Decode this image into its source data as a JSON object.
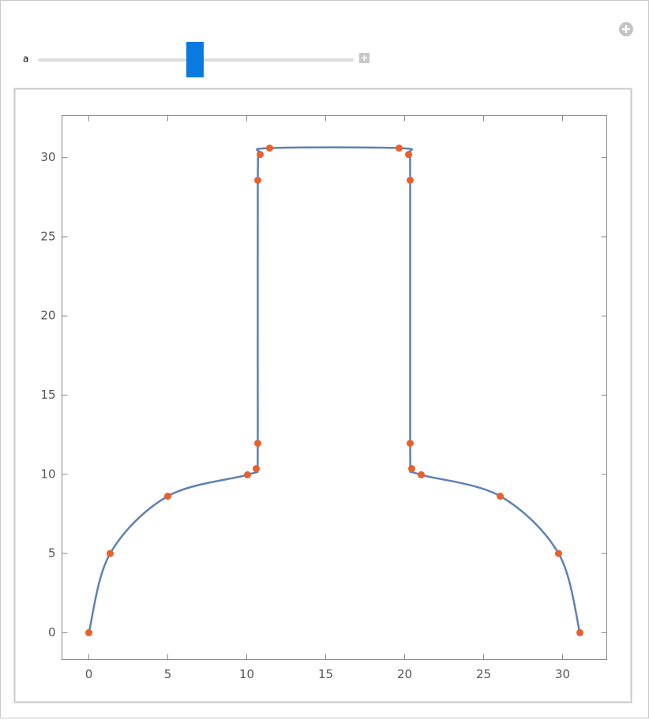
{
  "control": {
    "label": "a"
  },
  "chart_data": {
    "type": "line",
    "series": [
      {
        "color": "#5e81b5",
        "marker_color": "#e8602c",
        "x": [
          0,
          1.35,
          5,
          10.05,
          10.6,
          10.7,
          10.7,
          10.85,
          11.45,
          19.65,
          20.25,
          20.35,
          20.35,
          20.45,
          21.05,
          26.05,
          29.75,
          31.1
        ],
        "values": [
          0,
          5,
          8.62,
          9.97,
          10.36,
          11.96,
          28.57,
          30.2,
          30.6,
          30.6,
          30.2,
          28.57,
          11.96,
          10.36,
          9.97,
          8.62,
          5,
          0
        ]
      }
    ],
    "xlim": [
      -1.7,
      32.8
    ],
    "ylim": [
      -1.7,
      32.65
    ],
    "xticks": [
      0,
      5,
      10,
      15,
      20,
      25,
      30
    ],
    "yticks": [
      0,
      5,
      10,
      15,
      20,
      25,
      30
    ],
    "grid": false
  }
}
